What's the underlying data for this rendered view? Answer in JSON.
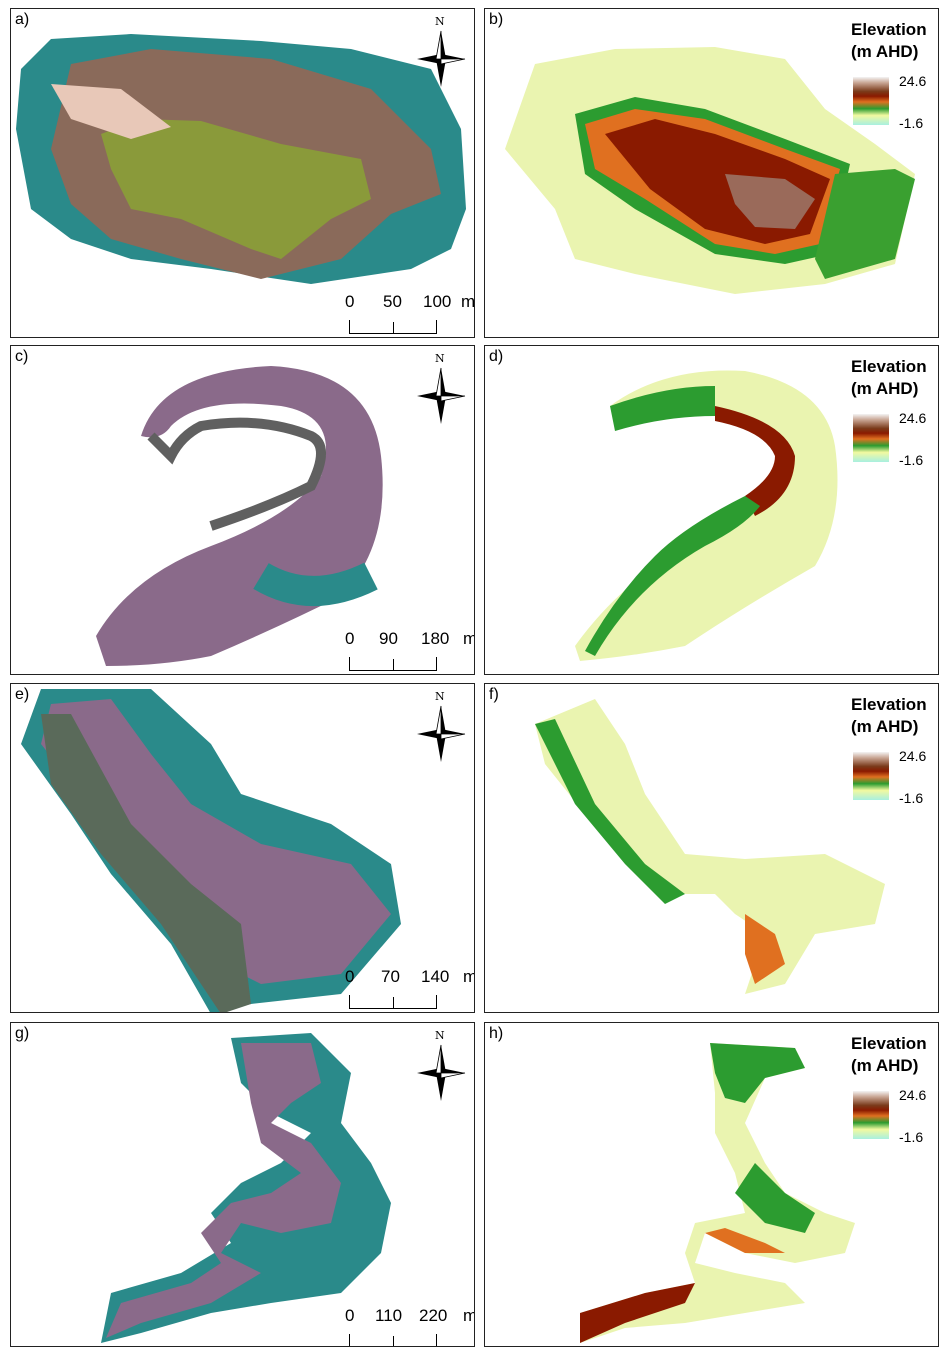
{
  "figure": {
    "rows": [
      {
        "photo": {
          "label": "a)",
          "scale": {
            "zero": "0",
            "mid": "50",
            "max": "100",
            "unit": "m"
          },
          "north": "N"
        },
        "dem": {
          "label": "b)",
          "legend": {
            "title_line1": "Elevation",
            "title_line2": "(m AHD)",
            "max": "24.6",
            "min": "-1.6"
          }
        }
      },
      {
        "photo": {
          "label": "c)",
          "scale": {
            "zero": "0",
            "mid": "90",
            "max": "180",
            "unit": "m"
          },
          "north": "N"
        },
        "dem": {
          "label": "d)",
          "legend": {
            "title_line1": "Elevation",
            "title_line2": "(m AHD)",
            "max": "24.6",
            "min": "-1.6"
          }
        }
      },
      {
        "photo": {
          "label": "e)",
          "scale": {
            "zero": "0",
            "mid": "70",
            "max": "140",
            "unit": "m"
          },
          "north": "N"
        },
        "dem": {
          "label": "f)",
          "legend": {
            "title_line1": "Elevation",
            "title_line2": "(m AHD)",
            "max": "24.6",
            "min": "-1.6"
          }
        }
      },
      {
        "photo": {
          "label": "g)",
          "scale": {
            "zero": "0",
            "mid": "110",
            "max": "220",
            "unit": "m"
          },
          "north": "N"
        },
        "dem": {
          "label": "h)",
          "legend": {
            "title_line1": "Elevation",
            "title_line2": "(m AHD)",
            "max": "24.6",
            "min": "-1.6"
          }
        }
      }
    ],
    "colors": {
      "rock": "#8a6a5a",
      "vegetation": "#8a9a3a",
      "sea": "#2a8a8a",
      "dem_low": "#eaf4b0",
      "dem_mid": "#2c9c30",
      "dem_high": "#8a1a00"
    }
  }
}
